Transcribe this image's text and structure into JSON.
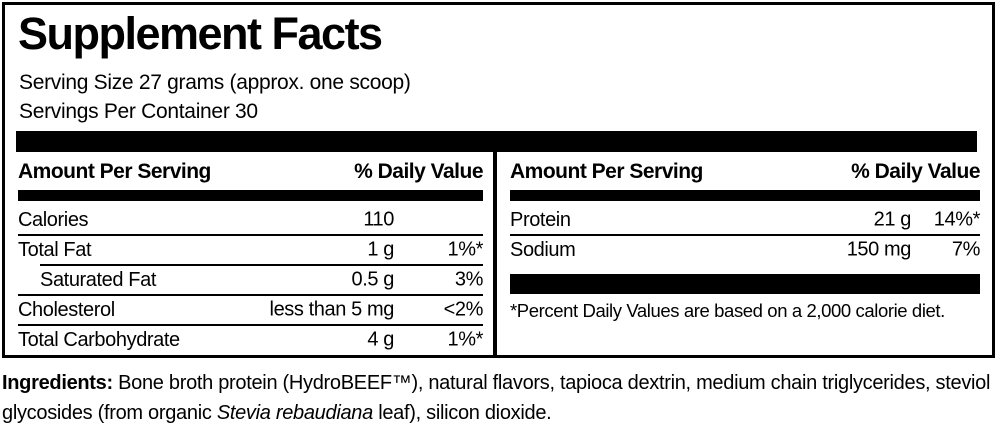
{
  "title": "Supplement Facts",
  "serving": {
    "size": "Serving Size 27 grams (approx. one scoop)",
    "per_container": "Servings Per Container 30"
  },
  "columns": {
    "left": {
      "header": {
        "amount_label": "Amount Per Serving",
        "dv_label": "% Daily Value"
      },
      "rows": [
        {
          "name": "Calories",
          "amount": "110",
          "dv": ""
        },
        {
          "name": "Total Fat",
          "amount": "1 g",
          "dv": "1%*"
        },
        {
          "name": "Saturated Fat",
          "amount": "0.5 g",
          "dv": "3%"
        },
        {
          "name": "Cholesterol",
          "amount": "less than 5 mg",
          "dv": "<2%"
        },
        {
          "name": "Total Carbohydrate",
          "amount": "4 g",
          "dv": "1%*"
        }
      ]
    },
    "right": {
      "header": {
        "amount_label": "Amount Per Serving",
        "dv_label": "% Daily Value"
      },
      "rows": [
        {
          "name": "Protein",
          "amount": "21 g",
          "dv": "14%*"
        },
        {
          "name": "Sodium",
          "amount": "150 mg",
          "dv": "7%"
        }
      ],
      "footnote": "*Percent Daily Values are based on a 2,000 calorie diet."
    }
  },
  "ingredients": {
    "label": "Ingredients:",
    "text_before_italic": " Bone broth protein (HydroBEEF™), natural flavors, tapioca dextrin, medium chain triglycerides, steviol glycosides (from organic ",
    "italic_species": "Stevia rebaudiana",
    "text_after_italic": " leaf), silicon dioxide."
  },
  "colors": {
    "ink": "#000000",
    "background": "#ffffff"
  }
}
